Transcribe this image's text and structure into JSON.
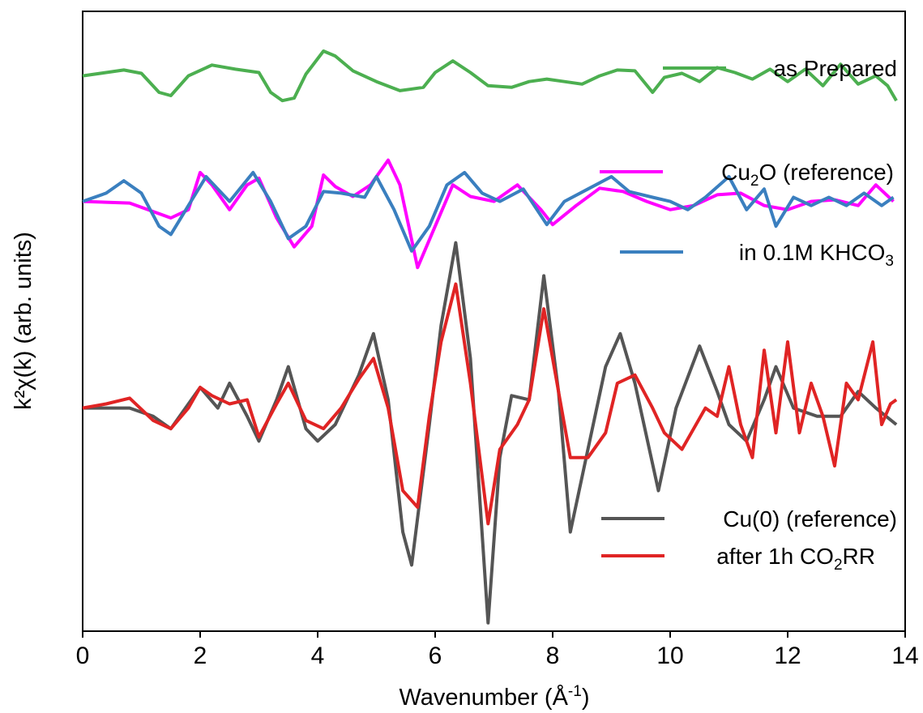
{
  "chart_data": {
    "type": "line",
    "title": "",
    "xlabel": "Wavenumber (Å",
    "xlabel_sup": "-1",
    "xlabel_end": ")",
    "ylabel": "k²χ(k) (arb. units)",
    "xlim": [
      0,
      14
    ],
    "x_ticks": [
      "0",
      "2",
      "4",
      "6",
      "8",
      "10",
      "12",
      "14"
    ],
    "y_ticks": "none",
    "grid": false,
    "legend_placement": "inline labels on right side",
    "series": [
      {
        "name": "as Prepared",
        "color": "#4caf50",
        "offset": 4.0,
        "points": [
          [
            0,
            0.02
          ],
          [
            0.4,
            0.06
          ],
          [
            0.7,
            0.09
          ],
          [
            1.0,
            0.05
          ],
          [
            1.3,
            -0.18
          ],
          [
            1.5,
            -0.22
          ],
          [
            1.8,
            0.02
          ],
          [
            2.2,
            0.15
          ],
          [
            2.6,
            0.1
          ],
          [
            3.0,
            0.06
          ],
          [
            3.2,
            -0.18
          ],
          [
            3.4,
            -0.28
          ],
          [
            3.6,
            -0.25
          ],
          [
            3.8,
            0.04
          ],
          [
            4.1,
            0.32
          ],
          [
            4.3,
            0.26
          ],
          [
            4.6,
            0.08
          ],
          [
            5.0,
            -0.05
          ],
          [
            5.4,
            -0.16
          ],
          [
            5.8,
            -0.12
          ],
          [
            6.0,
            0.06
          ],
          [
            6.3,
            0.2
          ],
          [
            6.6,
            0.06
          ],
          [
            6.9,
            -0.1
          ],
          [
            7.3,
            -0.12
          ],
          [
            7.6,
            -0.05
          ],
          [
            7.9,
            -0.02
          ],
          [
            8.2,
            -0.05
          ],
          [
            8.5,
            -0.08
          ],
          [
            8.8,
            0.02
          ],
          [
            9.1,
            0.09
          ],
          [
            9.4,
            0.08
          ],
          [
            9.7,
            -0.18
          ],
          [
            9.9,
            0.0
          ],
          [
            10.2,
            0.05
          ],
          [
            10.5,
            -0.05
          ],
          [
            10.8,
            0.12
          ],
          [
            11.1,
            0.06
          ],
          [
            11.4,
            -0.02
          ],
          [
            11.7,
            0.1
          ],
          [
            12.0,
            -0.05
          ],
          [
            12.3,
            0.1
          ],
          [
            12.6,
            -0.1
          ],
          [
            12.9,
            0.16
          ],
          [
            13.2,
            -0.08
          ],
          [
            13.5,
            0.02
          ],
          [
            13.7,
            -0.1
          ],
          [
            13.85,
            -0.28
          ]
        ]
      },
      {
        "name": "Cu",
        "name_sub": "2",
        "name_end": "O (reference)",
        "color": "#ff00ff",
        "offset": 2.5,
        "points": [
          [
            0,
            0.0
          ],
          [
            0.8,
            -0.02
          ],
          [
            1.5,
            -0.2
          ],
          [
            1.8,
            -0.1
          ],
          [
            2.0,
            0.35
          ],
          [
            2.2,
            0.2
          ],
          [
            2.5,
            -0.1
          ],
          [
            2.8,
            0.2
          ],
          [
            3.0,
            0.28
          ],
          [
            3.3,
            -0.2
          ],
          [
            3.6,
            -0.55
          ],
          [
            3.9,
            -0.3
          ],
          [
            4.1,
            0.32
          ],
          [
            4.3,
            0.18
          ],
          [
            4.6,
            0.06
          ],
          [
            4.9,
            0.2
          ],
          [
            5.2,
            0.5
          ],
          [
            5.4,
            0.2
          ],
          [
            5.7,
            -0.8
          ],
          [
            6.0,
            -0.3
          ],
          [
            6.3,
            0.2
          ],
          [
            6.6,
            0.06
          ],
          [
            7.0,
            0.0
          ],
          [
            7.4,
            0.2
          ],
          [
            7.8,
            -0.1
          ],
          [
            8.0,
            -0.28
          ],
          [
            8.4,
            -0.05
          ],
          [
            8.8,
            0.16
          ],
          [
            9.2,
            0.12
          ],
          [
            9.6,
            0.0
          ],
          [
            10.0,
            -0.1
          ],
          [
            10.4,
            -0.05
          ],
          [
            10.8,
            0.08
          ],
          [
            11.2,
            0.1
          ],
          [
            11.6,
            -0.05
          ],
          [
            12.0,
            -0.1
          ],
          [
            12.4,
            0.0
          ],
          [
            12.8,
            0.02
          ],
          [
            13.2,
            -0.05
          ],
          [
            13.5,
            0.2
          ],
          [
            13.8,
            0.0
          ]
        ]
      },
      {
        "name": "in 0.1M KHCO",
        "name_sub": "3",
        "name_end": "",
        "color": "#3a7fbf",
        "offset": 2.5,
        "points": [
          [
            0,
            0.0
          ],
          [
            0.4,
            0.1
          ],
          [
            0.7,
            0.25
          ],
          [
            1.0,
            0.1
          ],
          [
            1.3,
            -0.3
          ],
          [
            1.5,
            -0.4
          ],
          [
            1.8,
            -0.05
          ],
          [
            2.1,
            0.3
          ],
          [
            2.5,
            0.0
          ],
          [
            2.9,
            0.35
          ],
          [
            3.2,
            0.0
          ],
          [
            3.5,
            -0.45
          ],
          [
            3.8,
            -0.3
          ],
          [
            4.1,
            0.12
          ],
          [
            4.4,
            0.1
          ],
          [
            4.8,
            0.05
          ],
          [
            5.0,
            0.3
          ],
          [
            5.3,
            -0.1
          ],
          [
            5.6,
            -0.6
          ],
          [
            5.9,
            -0.3
          ],
          [
            6.2,
            0.2
          ],
          [
            6.5,
            0.35
          ],
          [
            6.8,
            0.1
          ],
          [
            7.1,
            0.0
          ],
          [
            7.5,
            0.15
          ],
          [
            7.9,
            -0.28
          ],
          [
            8.2,
            0.0
          ],
          [
            8.6,
            0.15
          ],
          [
            9.0,
            0.3
          ],
          [
            9.3,
            0.12
          ],
          [
            9.7,
            0.05
          ],
          [
            10.0,
            0.0
          ],
          [
            10.3,
            -0.1
          ],
          [
            10.6,
            0.05
          ],
          [
            11.0,
            0.3
          ],
          [
            11.3,
            -0.1
          ],
          [
            11.6,
            0.15
          ],
          [
            11.8,
            -0.3
          ],
          [
            12.1,
            0.05
          ],
          [
            12.4,
            -0.05
          ],
          [
            12.7,
            0.05
          ],
          [
            13.0,
            -0.05
          ],
          [
            13.3,
            0.1
          ],
          [
            13.6,
            -0.05
          ],
          [
            13.8,
            0.05
          ]
        ]
      },
      {
        "name": "Cu(0) (reference)",
        "color": "#555555",
        "offset": 0.0,
        "points": [
          [
            0,
            0.0
          ],
          [
            0.8,
            0.0
          ],
          [
            1.2,
            -0.1
          ],
          [
            1.5,
            -0.25
          ],
          [
            1.8,
            0.05
          ],
          [
            2.0,
            0.25
          ],
          [
            2.3,
            0.0
          ],
          [
            2.5,
            0.3
          ],
          [
            2.8,
            -0.1
          ],
          [
            3.0,
            -0.4
          ],
          [
            3.3,
            0.1
          ],
          [
            3.5,
            0.5
          ],
          [
            3.8,
            -0.25
          ],
          [
            4.0,
            -0.4
          ],
          [
            4.3,
            -0.2
          ],
          [
            4.7,
            0.4
          ],
          [
            4.95,
            0.9
          ],
          [
            5.2,
            0.1
          ],
          [
            5.45,
            -1.5
          ],
          [
            5.6,
            -1.9
          ],
          [
            5.9,
            -0.2
          ],
          [
            6.1,
            1.0
          ],
          [
            6.35,
            2.0
          ],
          [
            6.6,
            0.6
          ],
          [
            6.9,
            -2.6
          ],
          [
            7.1,
            -0.6
          ],
          [
            7.3,
            0.15
          ],
          [
            7.6,
            0.1
          ],
          [
            7.85,
            1.6
          ],
          [
            8.1,
            0.2
          ],
          [
            8.3,
            -1.5
          ],
          [
            8.6,
            -0.5
          ],
          [
            8.9,
            0.5
          ],
          [
            9.15,
            0.9
          ],
          [
            9.4,
            0.3
          ],
          [
            9.8,
            -1.0
          ],
          [
            10.1,
            0.0
          ],
          [
            10.5,
            0.75
          ],
          [
            10.8,
            0.2
          ],
          [
            11.0,
            -0.2
          ],
          [
            11.3,
            -0.4
          ],
          [
            11.6,
            0.1
          ],
          [
            11.8,
            0.5
          ],
          [
            12.1,
            0.0
          ],
          [
            12.5,
            -0.1
          ],
          [
            12.9,
            -0.1
          ],
          [
            13.2,
            0.2
          ],
          [
            13.5,
            0.0
          ],
          [
            13.85,
            -0.2
          ]
        ]
      },
      {
        "name": "after 1h CO",
        "name_sub": "2",
        "name_end": "RR",
        "color": "#e02424",
        "offset": 0.0,
        "points": [
          [
            0,
            0.0
          ],
          [
            0.4,
            0.05
          ],
          [
            0.8,
            0.12
          ],
          [
            1.2,
            -0.15
          ],
          [
            1.5,
            -0.25
          ],
          [
            1.8,
            0.0
          ],
          [
            2.0,
            0.25
          ],
          [
            2.2,
            0.15
          ],
          [
            2.5,
            0.05
          ],
          [
            2.8,
            0.1
          ],
          [
            3.0,
            -0.35
          ],
          [
            3.3,
            0.05
          ],
          [
            3.5,
            0.3
          ],
          [
            3.8,
            -0.15
          ],
          [
            4.1,
            -0.25
          ],
          [
            4.4,
            0.0
          ],
          [
            4.7,
            0.35
          ],
          [
            4.95,
            0.6
          ],
          [
            5.2,
            0.0
          ],
          [
            5.45,
            -1.0
          ],
          [
            5.7,
            -1.2
          ],
          [
            5.9,
            -0.1
          ],
          [
            6.1,
            0.8
          ],
          [
            6.35,
            1.5
          ],
          [
            6.6,
            0.3
          ],
          [
            6.9,
            -1.4
          ],
          [
            7.1,
            -0.5
          ],
          [
            7.4,
            -0.2
          ],
          [
            7.6,
            0.1
          ],
          [
            7.85,
            1.2
          ],
          [
            8.1,
            0.2
          ],
          [
            8.3,
            -0.6
          ],
          [
            8.6,
            -0.6
          ],
          [
            8.9,
            -0.3
          ],
          [
            9.1,
            0.3
          ],
          [
            9.4,
            0.4
          ],
          [
            9.7,
            0.0
          ],
          [
            9.9,
            -0.3
          ],
          [
            10.2,
            -0.5
          ],
          [
            10.6,
            0.0
          ],
          [
            10.8,
            -0.1
          ],
          [
            11.0,
            0.5
          ],
          [
            11.2,
            -0.2
          ],
          [
            11.4,
            -0.6
          ],
          [
            11.6,
            0.7
          ],
          [
            11.8,
            -0.3
          ],
          [
            12.0,
            0.8
          ],
          [
            12.2,
            -0.3
          ],
          [
            12.4,
            0.3
          ],
          [
            12.6,
            -0.1
          ],
          [
            12.8,
            -0.7
          ],
          [
            13.0,
            0.3
          ],
          [
            13.2,
            0.1
          ],
          [
            13.45,
            0.8
          ],
          [
            13.6,
            -0.2
          ],
          [
            13.75,
            0.05
          ],
          [
            13.85,
            0.1
          ]
        ]
      }
    ]
  }
}
